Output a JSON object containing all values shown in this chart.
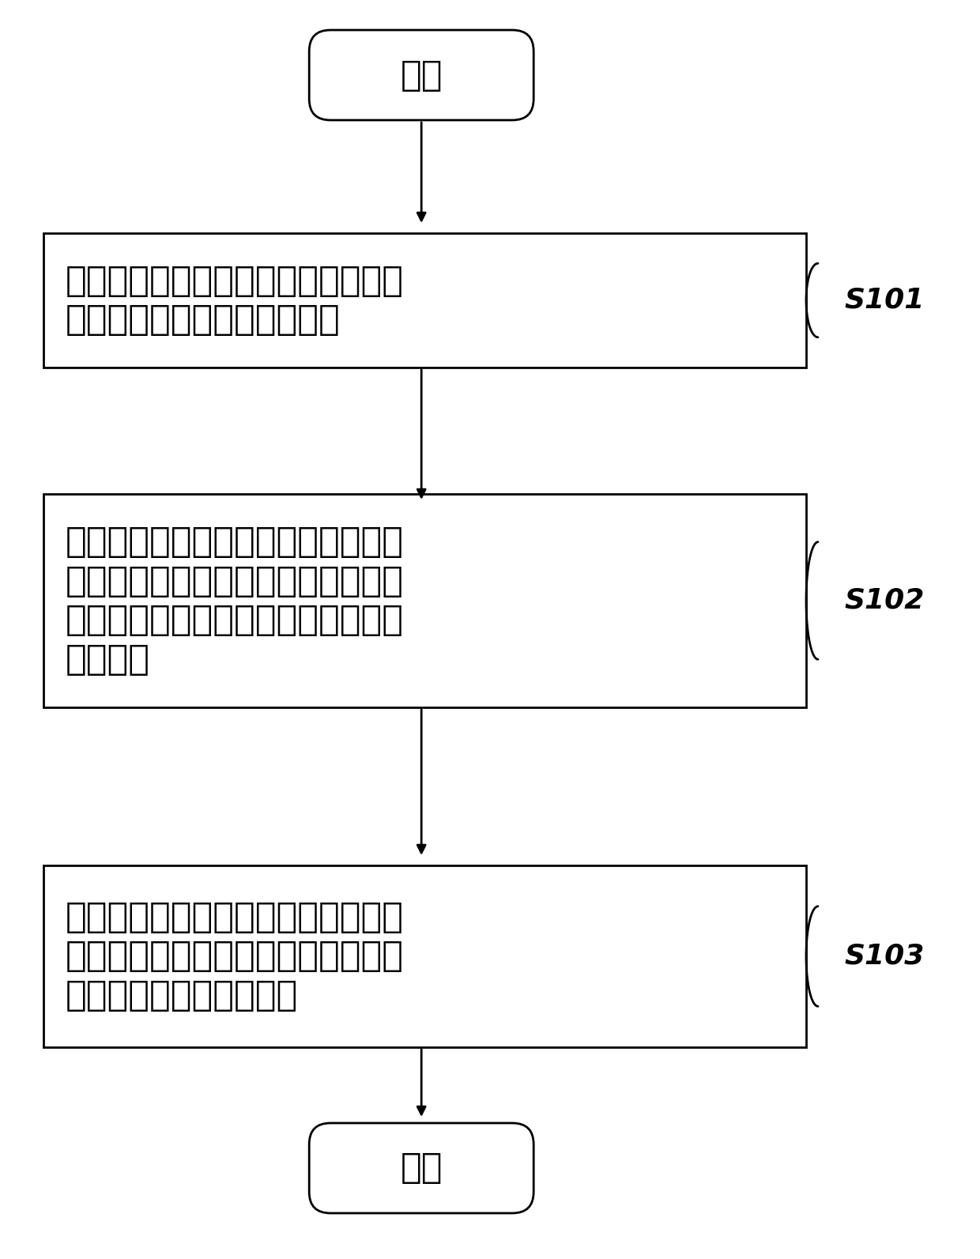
{
  "background_color": "#ffffff",
  "start_text": "开始",
  "end_text": "结束",
  "box1_text_line1": "获取当前终端的当前位置信息，获取",
  "box1_text_line2": "所述当前终端中的关联器信息",
  "box2_text_line1": "将所述当前终端的当前位置信息与所",
  "box2_text_line2": "述关联器中的预设位置信息进行比较",
  "box2_text_line3": "，以确定与所述当前位置信息相匹配",
  "box2_text_line4": "的关联器",
  "box3_text_line1": "基于所述相匹配的关联器，使用该关",
  "box3_text_line2": "联器对应的密钥，自动解密并显示与",
  "box3_text_line3": "所述关联器相关联的文件",
  "label1": "S101",
  "label2": "S102",
  "label3": "S103",
  "fig_width": 12.4,
  "fig_height": 15.93,
  "dpi": 100
}
